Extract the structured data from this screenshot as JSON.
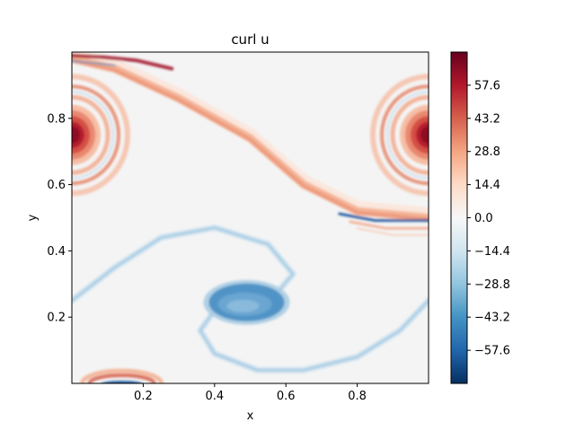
{
  "chart_data": {
    "type": "heatmap",
    "title": "curl u",
    "xlabel": "x",
    "ylabel": "y",
    "xlim": [
      0.0,
      1.0
    ],
    "ylim": [
      0.0,
      1.0
    ],
    "x_ticks": [
      0.2,
      0.4,
      0.6,
      0.8
    ],
    "x_tick_labels": [
      "0.2",
      "0.4",
      "0.6",
      "0.8"
    ],
    "y_ticks": [
      0.2,
      0.4,
      0.6,
      0.8
    ],
    "y_tick_labels": [
      "0.2",
      "0.4",
      "0.6",
      "0.8"
    ],
    "colormap": "RdBu_r",
    "colorbar": {
      "range": [
        -72.0,
        72.0
      ],
      "ticks": [
        57.6,
        43.2,
        28.8,
        14.4,
        0.0,
        -14.4,
        -28.8,
        -43.2,
        -57.6
      ],
      "tick_labels": [
        "57.6",
        "43.2",
        "28.8",
        "14.4",
        "0.0",
        "−14.4",
        "−28.8",
        "−43.2",
        "−57.6"
      ]
    },
    "features": [
      {
        "name": "positive vortex",
        "center": [
          0.0,
          0.75
        ],
        "peak": 60,
        "periodic_x": true
      },
      {
        "name": "negative vortex",
        "center": [
          0.5,
          0.25
        ],
        "peak": -45
      },
      {
        "name": "positive filament",
        "sign": "positive",
        "path": [
          [
            0.0,
            0.98
          ],
          [
            0.12,
            0.95
          ],
          [
            0.3,
            0.86
          ],
          [
            0.5,
            0.74
          ],
          [
            0.65,
            0.6
          ],
          [
            0.8,
            0.52
          ],
          [
            1.0,
            0.5
          ]
        ]
      },
      {
        "name": "negative filament",
        "sign": "negative",
        "path": [
          [
            0.0,
            0.25
          ],
          [
            0.12,
            0.35
          ],
          [
            0.25,
            0.44
          ],
          [
            0.4,
            0.47
          ],
          [
            0.55,
            0.42
          ],
          [
            0.62,
            0.33
          ],
          [
            0.58,
            0.28
          ]
        ]
      }
    ]
  }
}
